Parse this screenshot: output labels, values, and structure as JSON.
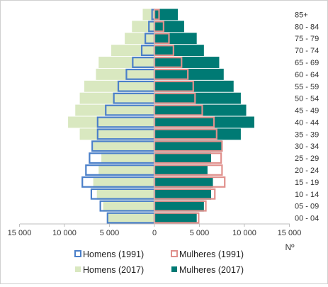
{
  "chart_data": {
    "type": "bar",
    "orientation": "horizontal",
    "subtype": "population-pyramid",
    "title": "",
    "xlabel": "Nº",
    "ylabel": "",
    "xlim": [
      -15000,
      15000
    ],
    "x_ticks": [
      -15000,
      -10000,
      -5000,
      0,
      5000,
      10000,
      15000
    ],
    "x_tick_labels": [
      "15 000",
      "10 000",
      "5 000",
      "0",
      "5 000",
      "10 000",
      "15 000"
    ],
    "categories": [
      "00 - 04",
      "05 - 09",
      "10 - 14",
      "15 - 19",
      "20 - 24",
      "25 - 29",
      "30 - 34",
      "35 - 39",
      "40 - 44",
      "45 - 49",
      "50 - 54",
      "55 - 59",
      "60 - 64",
      "65 - 69",
      "70 - 74",
      "75 - 79",
      "80 - 84",
      "85+"
    ],
    "series": [
      {
        "name": "Homens (2017)",
        "side": "left",
        "style": "fill",
        "color": "#d9e8c0",
        "values": [
          5200,
          5700,
          6400,
          6800,
          6200,
          5900,
          6800,
          8300,
          9600,
          8800,
          8300,
          7800,
          6500,
          6200,
          4800,
          3300,
          2500,
          1300
        ]
      },
      {
        "name": "Mulheres (2017)",
        "side": "right",
        "style": "fill",
        "color": "#007a74",
        "values": [
          4700,
          5500,
          6300,
          6500,
          5900,
          6300,
          7500,
          9600,
          11100,
          10200,
          9600,
          8800,
          7700,
          7200,
          5500,
          4700,
          3300,
          2600
        ]
      },
      {
        "name": "Homens (1991)",
        "side": "left",
        "style": "outline",
        "color": "#4a7fc9",
        "values": [
          5300,
          6100,
          7100,
          8100,
          7700,
          7300,
          7000,
          6400,
          6400,
          5500,
          4600,
          4100,
          3200,
          2500,
          1500,
          1100,
          700,
          350
        ]
      },
      {
        "name": "Mulheres (1991)",
        "side": "right",
        "style": "outline",
        "color": "#e0908c",
        "values": [
          5000,
          5800,
          6800,
          7900,
          7600,
          7500,
          7600,
          7000,
          6700,
          5400,
          4600,
          4400,
          3800,
          3100,
          2200,
          1700,
          1100,
          600
        ]
      }
    ],
    "legend_position": "bottom",
    "legend": [
      "Homens (1991)",
      "Mulheres (1991)",
      "Homens (2017)",
      "Mulheres (2017)"
    ]
  }
}
